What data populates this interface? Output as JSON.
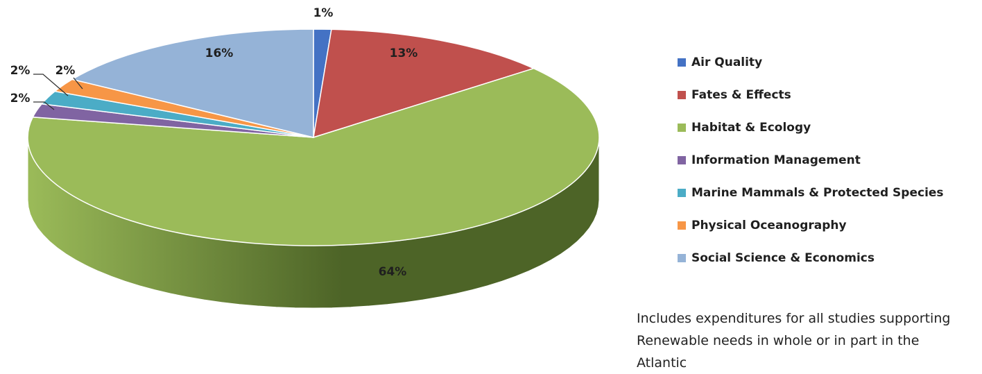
{
  "chart_data": {
    "type": "pie",
    "title": "",
    "style": "3d",
    "legend_position": "right",
    "slices": [
      {
        "label": "Air Quality",
        "value": 1,
        "display": "1%",
        "color": "#4472C4",
        "color_dark": "#23407a"
      },
      {
        "label": "Fates & Effects",
        "value": 13,
        "display": "13%",
        "color": "#C0504D",
        "color_dark": "#6e2321"
      },
      {
        "label": "Habitat & Ecology",
        "value": 64,
        "display": "64%",
        "color": "#9BBB59",
        "color_dark": "#4d6427"
      },
      {
        "label": "Information Management",
        "value": 2,
        "display": "2%",
        "color": "#8064A2",
        "color_dark": "#43305e"
      },
      {
        "label": "Marine Mammals & Protected Species",
        "value": 2,
        "display": "2%",
        "color": "#4BACC6",
        "color_dark": "#1f6072"
      },
      {
        "label": "Physical Oceanography",
        "value": 2,
        "display": "2%",
        "color": "#F79646",
        "color_dark": "#93501a"
      },
      {
        "label": "Social Science & Economics",
        "value": 16,
        "display": "16%",
        "color": "#95B3D7",
        "color_dark": "#50688a"
      }
    ]
  },
  "note": "Includes expenditures for all studies supporting Renewable needs in whole or in part in the Atlantic"
}
